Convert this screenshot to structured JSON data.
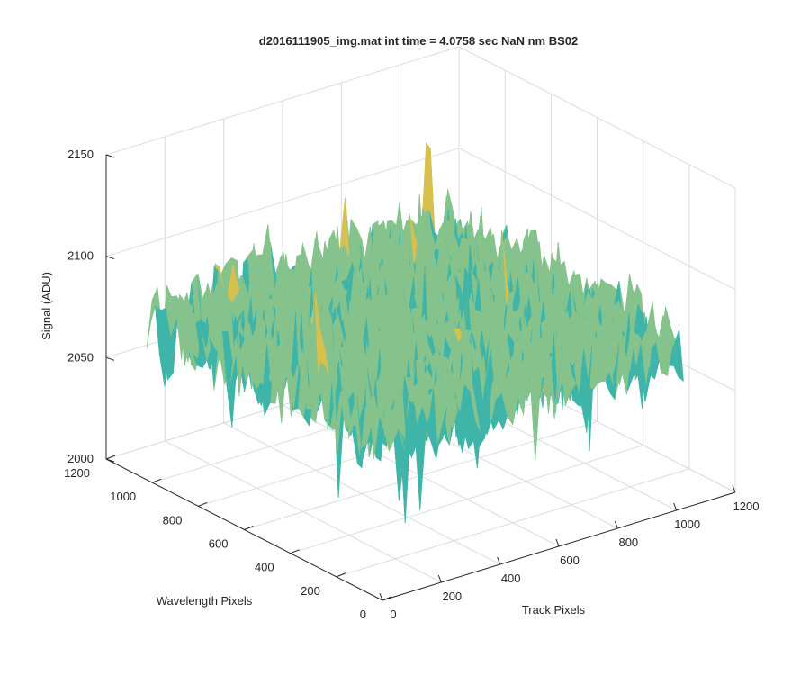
{
  "chart_data": {
    "type": "surface",
    "title": "d2016111905_img.mat int time = 4.0758 sec  NaN nm BS02",
    "xlabel": "Track Pixels",
    "ylabel": "Wavelength Pixels",
    "zlabel": "Signal (ADU)",
    "xlim": [
      0,
      1200
    ],
    "ylim": [
      0,
      1200
    ],
    "zlim": [
      2000,
      2150
    ],
    "x_ticks": [
      "0",
      "200",
      "400",
      "600",
      "800",
      "1000",
      "1200"
    ],
    "y_ticks": [
      "0",
      "200",
      "400",
      "600",
      "800",
      "1000",
      "1200"
    ],
    "z_ticks": [
      "2000",
      "2050",
      "2100",
      "2150"
    ],
    "grid": true,
    "colormap": [
      "#0072bd",
      "#1a9bc4",
      "#3fb5a9",
      "#86c38c",
      "#d8c04e",
      "#f0c23c"
    ],
    "surface": {
      "x_extent": [
        0,
        1024
      ],
      "y_extent": [
        0,
        1024
      ],
      "mean_signal": 2080,
      "min_signal": 2025,
      "max_signal": 2130,
      "noisy": true
    }
  }
}
